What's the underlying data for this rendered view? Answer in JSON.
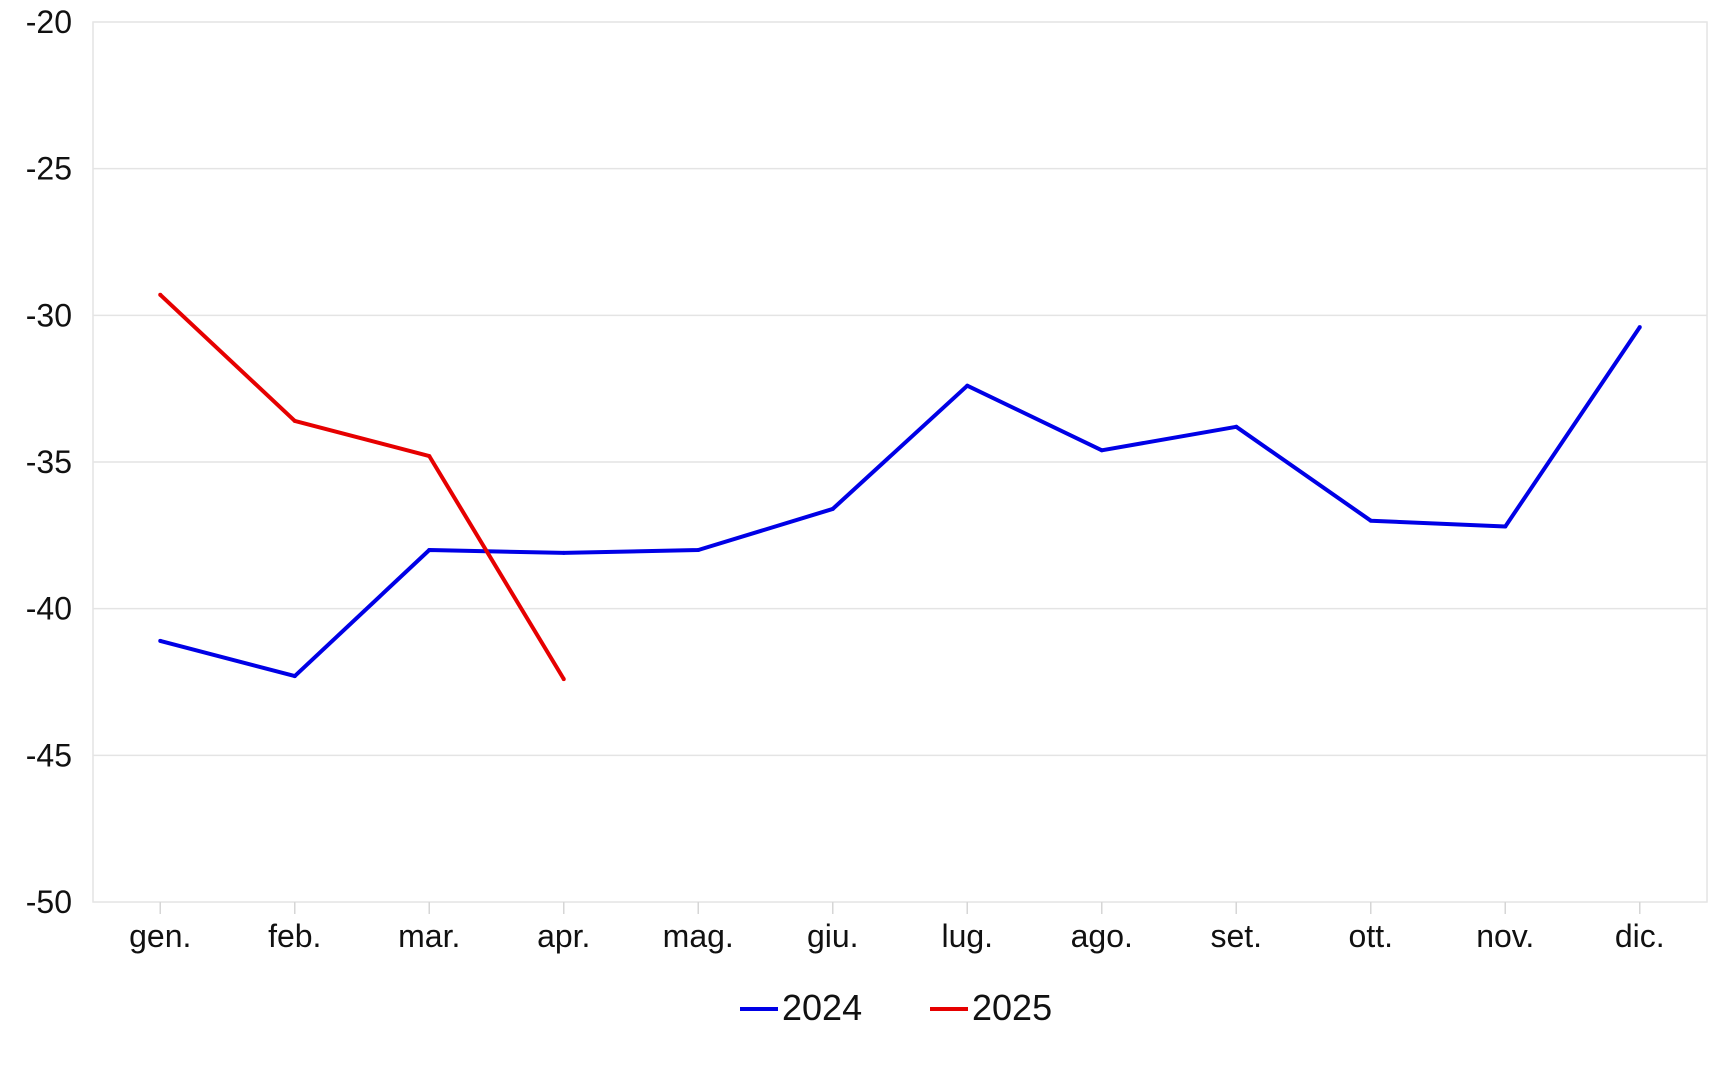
{
  "chart_data": {
    "type": "line",
    "categories": [
      "gen.",
      "feb.",
      "mar.",
      "apr.",
      "mag.",
      "giu.",
      "lug.",
      "ago.",
      "set.",
      "ott.",
      "nov.",
      "dic."
    ],
    "series": [
      {
        "name": "2024",
        "color": "#0000e6",
        "values": [
          -41.1,
          -42.3,
          -38.0,
          -38.1,
          -38.0,
          -36.6,
          -32.4,
          -34.6,
          -33.8,
          -37.0,
          -37.2,
          -30.4
        ]
      },
      {
        "name": "2025",
        "color": "#e60000",
        "values": [
          -29.3,
          -33.6,
          -34.8,
          -42.4,
          null,
          null,
          null,
          null,
          null,
          null,
          null,
          null
        ]
      }
    ],
    "y_ticks": [
      "-20",
      "-25",
      "-30",
      "-35",
      "-40",
      "-45",
      "-50"
    ],
    "ylim": [
      -50,
      -20
    ],
    "grid": true,
    "legend_position": "bottom",
    "title": "",
    "xlabel": "",
    "ylabel": ""
  }
}
